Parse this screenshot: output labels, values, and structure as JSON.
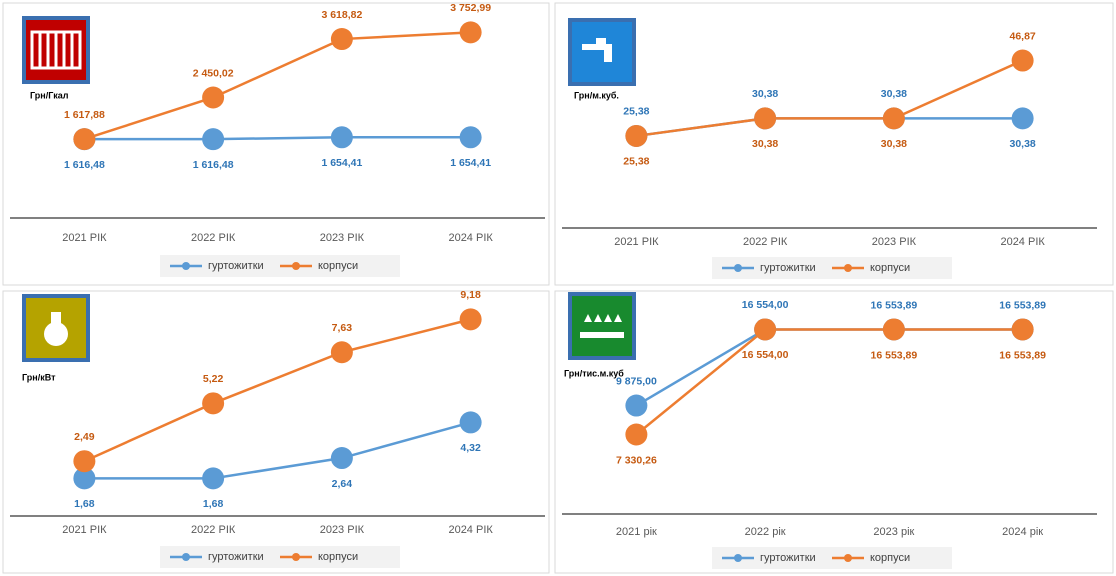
{
  "chart_data": [
    {
      "type": "line",
      "unit_label": "Грн/Гкал",
      "categories": [
        "2021 РІК",
        "2022 РІК",
        "2023 РІК",
        "2024 РІК"
      ],
      "ylim": [
        0,
        4000
      ],
      "series": [
        {
          "name": "гуртожитки",
          "color": "#5b9bd5",
          "values": [
            1616.48,
            1616.48,
            1654.41,
            1654.41
          ],
          "value_labels": [
            "1 616,48",
            "1 616,48",
            "1 654,41",
            "1 654,41"
          ]
        },
        {
          "name": "корпуси",
          "color": "#ed7d31",
          "values": [
            1617.88,
            2450.02,
            3618.82,
            3752.99
          ],
          "value_labels": [
            "1 617,88",
            "2 450,02",
            "3 618,82",
            "3 752,99"
          ]
        }
      ]
    },
    {
      "type": "line",
      "unit_label": "Грн/м.куб.",
      "categories": [
        "2021 РІК",
        "2022 РІК",
        "2023 РІК",
        "2024 РІК"
      ],
      "ylim": [
        0,
        55
      ],
      "series": [
        {
          "name": "гуртожитки",
          "color": "#5b9bd5",
          "values": [
            25.38,
            30.38,
            30.38,
            30.38
          ],
          "value_labels": [
            "25,38",
            "30,38",
            "30,38",
            "30,38"
          ]
        },
        {
          "name": "корпуси",
          "color": "#ed7d31",
          "values": [
            25.38,
            30.38,
            30.38,
            46.87
          ],
          "value_labels": [
            "25,38",
            "30,38",
            "30,38",
            "46,87"
          ]
        }
      ]
    },
    {
      "type": "line",
      "unit_label": "Грн/кВт",
      "categories": [
        "2021 РІК",
        "2022 РІК",
        "2023 РІК",
        "2024 РІК"
      ],
      "ylim": [
        0,
        10
      ],
      "series": [
        {
          "name": "гуртожитки",
          "color": "#5b9bd5",
          "values": [
            1.68,
            1.68,
            2.64,
            4.32
          ],
          "value_labels": [
            "1,68",
            "1,68",
            "2,64",
            "4,32"
          ]
        },
        {
          "name": "корпуси",
          "color": "#ed7d31",
          "values": [
            2.49,
            5.22,
            7.63,
            9.18
          ],
          "value_labels": [
            "2,49",
            "5,22",
            "7,63",
            "9,18"
          ]
        }
      ]
    },
    {
      "type": "line",
      "unit_label": "Грн/тис.м.куб",
      "categories": [
        "2021 рік",
        "2022 рік",
        "2023 рік",
        "2024 рік"
      ],
      "ylim": [
        0,
        18000
      ],
      "series": [
        {
          "name": "гуртожитки",
          "color": "#5b9bd5",
          "values": [
            9875.0,
            16554.0,
            16553.89,
            16553.89
          ],
          "value_labels": [
            "9 875,00",
            "16 554,00",
            "16 553,89",
            "16 553,89"
          ]
        },
        {
          "name": "корпуси",
          "color": "#ed7d31",
          "values": [
            7330.26,
            16554.0,
            16553.89,
            16553.89
          ],
          "value_labels": [
            "7 330,26",
            "16 554,00",
            "16 553,89",
            "16 553,89"
          ]
        }
      ]
    }
  ]
}
